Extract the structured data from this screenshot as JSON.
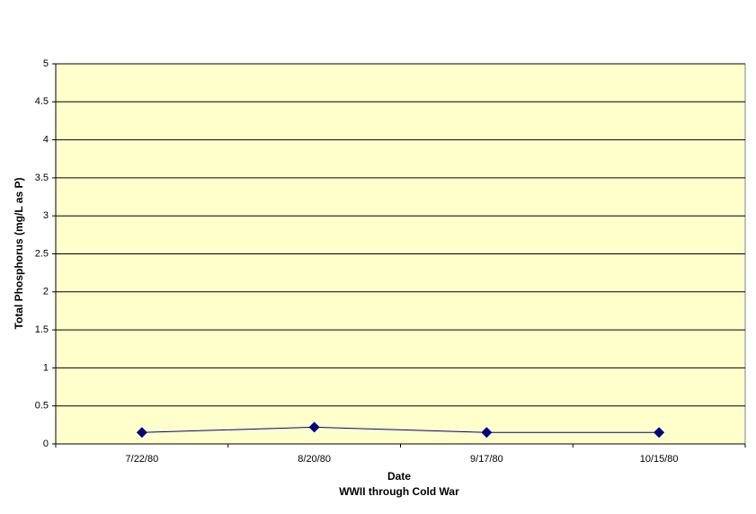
{
  "chart_data": {
    "type": "line",
    "ylabel": "Total Phosphorus (mg/L as P)",
    "xlabel": "Date",
    "xlabel_subtitle": "WWII through Cold War",
    "categories": [
      "7/22/80",
      "8/20/80",
      "9/17/80",
      "10/15/80"
    ],
    "values": [
      0.15,
      0.22,
      0.15,
      0.15
    ],
    "color": "#000080",
    "background": "#ffffcc",
    "ylim": [
      0,
      5
    ],
    "yticks": [
      0,
      0.5,
      1,
      1.5,
      2,
      2.5,
      3,
      3.5,
      4,
      4.5,
      5
    ],
    "grid": true
  }
}
